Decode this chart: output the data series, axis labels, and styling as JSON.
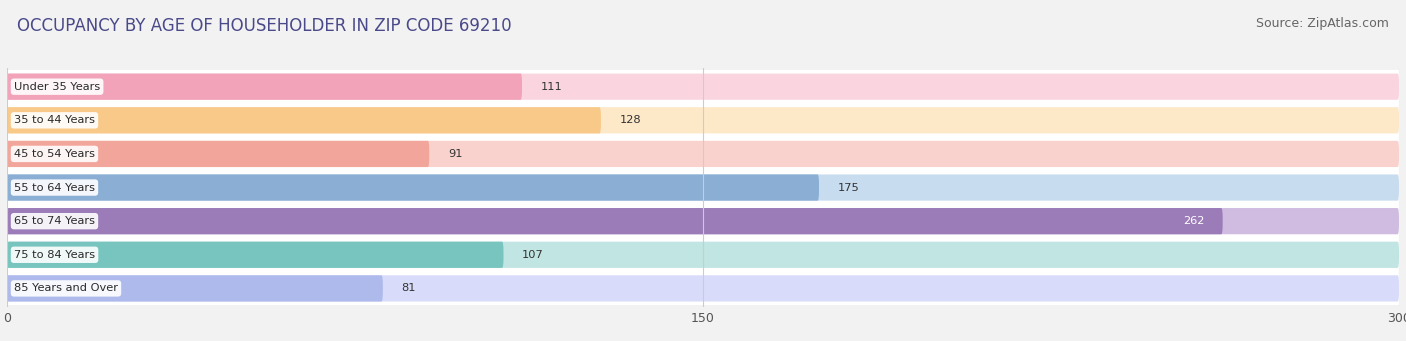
{
  "title": "OCCUPANCY BY AGE OF HOUSEHOLDER IN ZIP CODE 69210",
  "source": "Source: ZipAtlas.com",
  "categories": [
    "Under 35 Years",
    "35 to 44 Years",
    "45 to 54 Years",
    "55 to 64 Years",
    "65 to 74 Years",
    "75 to 84 Years",
    "85 Years and Over"
  ],
  "values": [
    111,
    128,
    91,
    175,
    262,
    107,
    81
  ],
  "bar_colors": [
    "#F2A3BA",
    "#F9C98A",
    "#F2A59A",
    "#8AAED4",
    "#9B7BB8",
    "#78C4BE",
    "#AEBAEC"
  ],
  "bar_bg_colors": [
    "#FAD5E0",
    "#FDE8C8",
    "#FAD2CD",
    "#C8DCF0",
    "#CFBCE0",
    "#C0E5E2",
    "#D8DCFA"
  ],
  "label_colors": [
    "#333333",
    "#333333",
    "#333333",
    "#333333",
    "#ffffff",
    "#333333",
    "#333333"
  ],
  "xlim": [
    0,
    300
  ],
  "xticks": [
    0,
    150,
    300
  ],
  "title_color": "#4a4a8a",
  "title_fontsize": 12,
  "source_fontsize": 9,
  "bar_height": 0.78,
  "background_color": "#f2f2f2"
}
